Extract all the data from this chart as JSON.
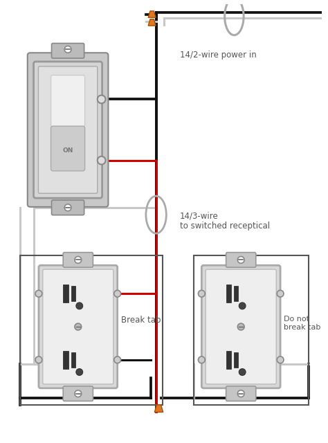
{
  "bg_color": "#ffffff",
  "wire_black": "#111111",
  "wire_red": "#cc0000",
  "wire_white": "#c8c8c8",
  "wire_gray": "#888888",
  "connector_color": "#e07820",
  "component_fill": "#e8e8e8",
  "component_fill2": "#f0f0f0",
  "component_edge": "#888888",
  "text_color": "#555555",
  "label_power": "14/2-wire power in",
  "label_switched": "14/3-wire\nto switched receptical",
  "label_break": "Break tab",
  "label_nobreak": "Do not\nbreak tab",
  "fig_width": 4.74,
  "fig_height": 6.4
}
